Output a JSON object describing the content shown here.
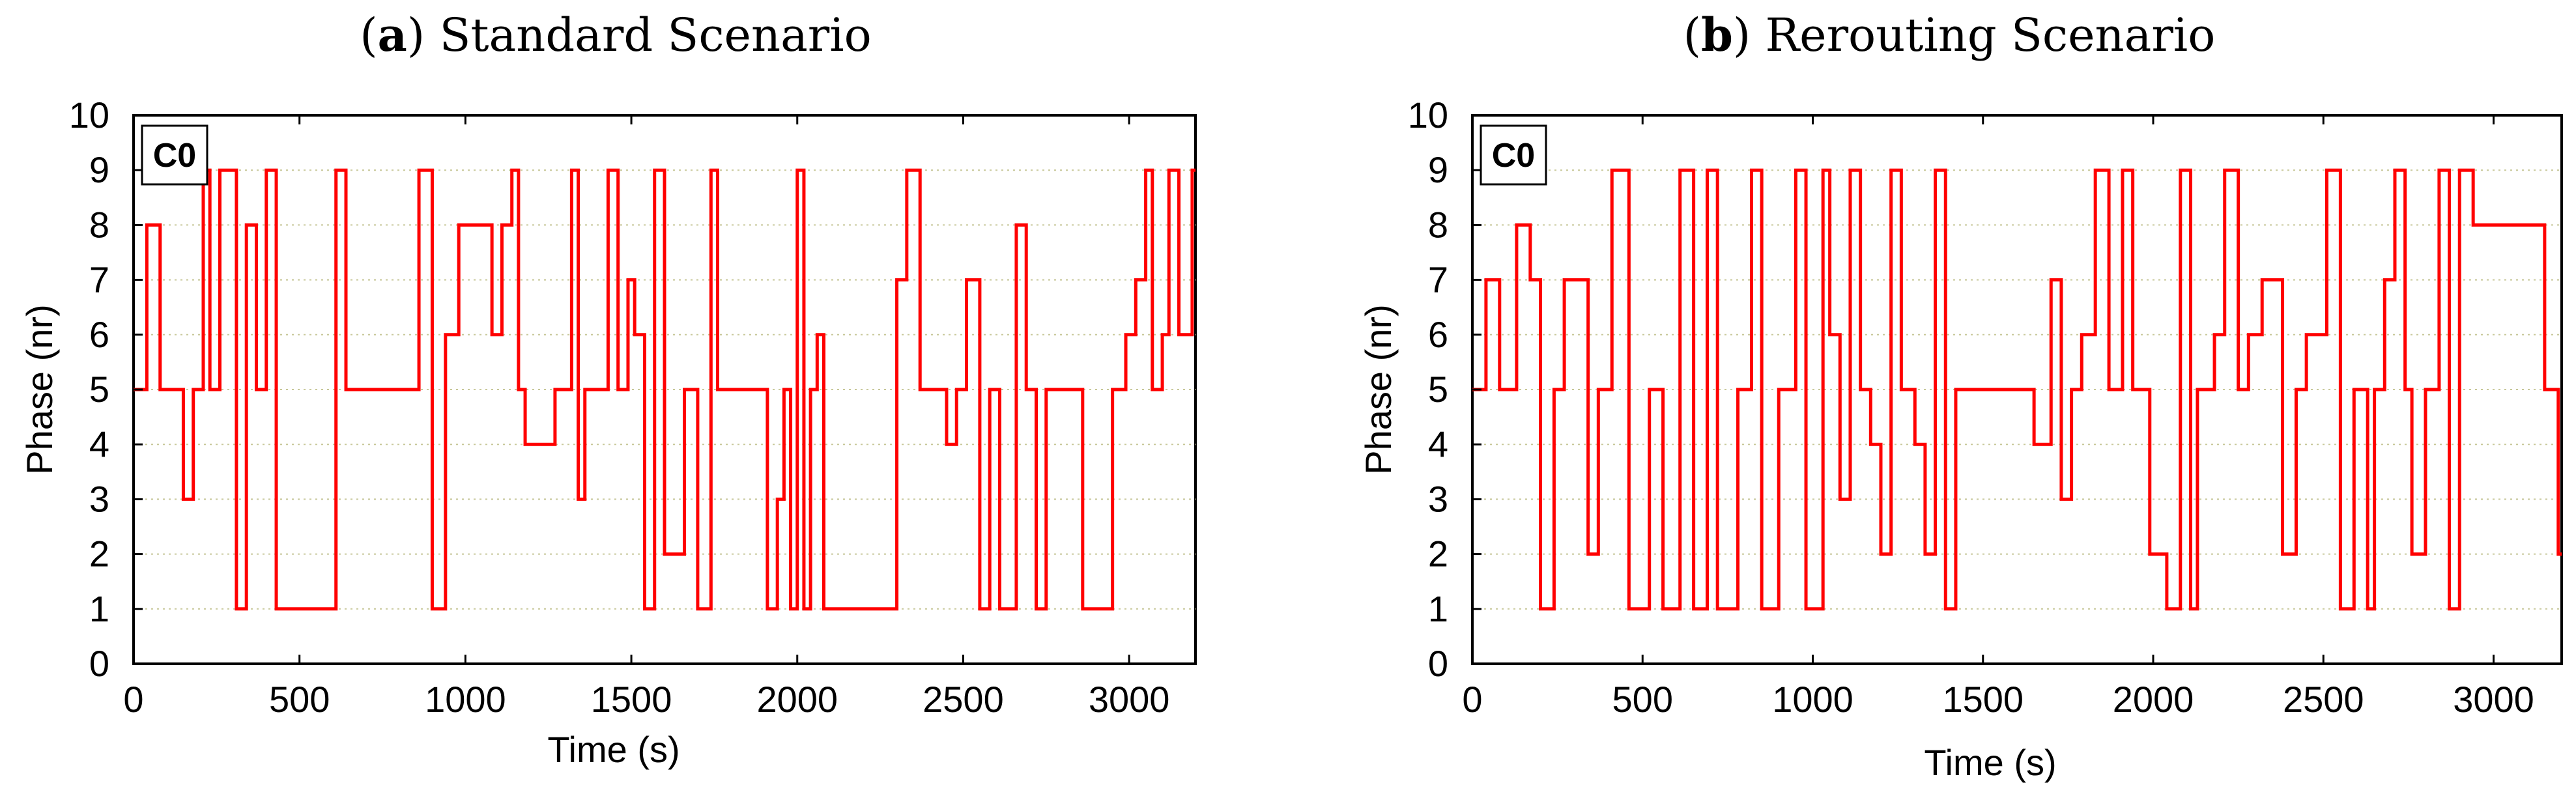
{
  "chart_data": [
    {
      "type": "line",
      "step": "post",
      "caption_letter": "a",
      "title": "Standard Scenario",
      "inset_label": "C0",
      "xlabel": "Time (s)",
      "ylabel": "Phase (nr)",
      "xlim": [
        0,
        3200
      ],
      "ylim": [
        0,
        10
      ],
      "xticks": [
        0,
        500,
        1000,
        1500,
        2000,
        2500,
        3000
      ],
      "yticks": [
        0,
        1,
        2,
        3,
        4,
        5,
        6,
        7,
        8,
        9,
        10
      ],
      "grid_y": [
        1,
        2,
        3,
        4,
        5,
        6,
        7,
        8,
        9
      ],
      "series": [
        {
          "name": "C0",
          "color": "#ff0000",
          "x": [
            0,
            40,
            80,
            150,
            180,
            210,
            230,
            260,
            310,
            340,
            370,
            400,
            430,
            470,
            510,
            550,
            610,
            640,
            860,
            900,
            940,
            980,
            1040,
            1080,
            1110,
            1140,
            1160,
            1180,
            1200,
            1220,
            1270,
            1320,
            1340,
            1360,
            1390,
            1430,
            1460,
            1490,
            1510,
            1540,
            1570,
            1600,
            1630,
            1660,
            1700,
            1740,
            1760,
            1790,
            1820,
            1910,
            1940,
            1960,
            1980,
            2000,
            2020,
            2040,
            2060,
            2080,
            2110,
            2140,
            2170,
            2200,
            2300,
            2330,
            2370,
            2390,
            2450,
            2480,
            2510,
            2550,
            2580,
            2610,
            2630,
            2660,
            2690,
            2720,
            2750,
            2780,
            2830,
            2860,
            2950,
            2990,
            3020,
            3050,
            3070,
            3100,
            3120,
            3150,
            3190,
            3200
          ],
          "y": [
            5,
            8,
            5,
            3,
            5,
            9,
            5,
            9,
            1,
            8,
            5,
            9,
            1,
            1,
            1,
            1,
            9,
            5,
            9,
            1,
            6,
            8,
            8,
            6,
            8,
            9,
            5,
            4,
            4,
            4,
            5,
            9,
            3,
            5,
            5,
            9,
            5,
            7,
            6,
            1,
            9,
            2,
            2,
            5,
            1,
            9,
            5,
            5,
            5,
            1,
            3,
            5,
            1,
            9,
            1,
            5,
            6,
            1,
            1,
            1,
            1,
            1,
            7,
            9,
            5,
            5,
            4,
            5,
            7,
            1,
            5,
            1,
            1,
            8,
            5,
            1,
            5,
            5,
            5,
            1,
            5,
            6,
            7,
            9,
            5,
            6,
            9,
            6,
            9,
            9
          ]
        }
      ]
    },
    {
      "type": "line",
      "step": "post",
      "caption_letter": "b",
      "title": "Rerouting Scenario",
      "inset_label": "C0",
      "xlabel": "Time (s)",
      "ylabel": "Phase (nr)",
      "xlim": [
        0,
        3200
      ],
      "ylim": [
        0,
        10
      ],
      "xticks": [
        0,
        500,
        1000,
        1500,
        2000,
        2500,
        3000
      ],
      "yticks": [
        0,
        1,
        2,
        3,
        4,
        5,
        6,
        7,
        8,
        9,
        10
      ],
      "grid_y": [
        1,
        2,
        3,
        4,
        5,
        6,
        7,
        8,
        9
      ],
      "series": [
        {
          "name": "C0",
          "color": "#ff0000",
          "x": [
            0,
            40,
            80,
            130,
            170,
            200,
            240,
            270,
            340,
            370,
            410,
            460,
            520,
            560,
            610,
            650,
            690,
            720,
            780,
            820,
            850,
            900,
            950,
            980,
            1030,
            1050,
            1080,
            1110,
            1140,
            1170,
            1200,
            1230,
            1260,
            1300,
            1330,
            1360,
            1390,
            1420,
            1460,
            1490,
            1550,
            1650,
            1700,
            1730,
            1760,
            1790,
            1830,
            1870,
            1910,
            1940,
            1990,
            2040,
            2080,
            2110,
            2130,
            2180,
            2210,
            2250,
            2280,
            2320,
            2350,
            2380,
            2420,
            2450,
            2480,
            2510,
            2550,
            2590,
            2630,
            2650,
            2680,
            2710,
            2740,
            2760,
            2800,
            2840,
            2870,
            2900,
            2940,
            3100,
            3150,
            3190,
            3200
          ],
          "y": [
            5,
            7,
            5,
            8,
            7,
            1,
            5,
            7,
            2,
            5,
            9,
            1,
            5,
            1,
            9,
            1,
            9,
            1,
            5,
            9,
            1,
            5,
            9,
            1,
            9,
            6,
            3,
            9,
            5,
            4,
            2,
            9,
            5,
            4,
            2,
            9,
            1,
            5,
            5,
            5,
            5,
            4,
            7,
            3,
            5,
            6,
            9,
            5,
            9,
            5,
            2,
            1,
            9,
            1,
            5,
            6,
            9,
            5,
            6,
            7,
            7,
            2,
            5,
            6,
            6,
            9,
            1,
            5,
            1,
            5,
            7,
            9,
            5,
            2,
            5,
            9,
            1,
            9,
            8,
            8,
            5,
            2,
            2
          ]
        }
      ]
    }
  ]
}
